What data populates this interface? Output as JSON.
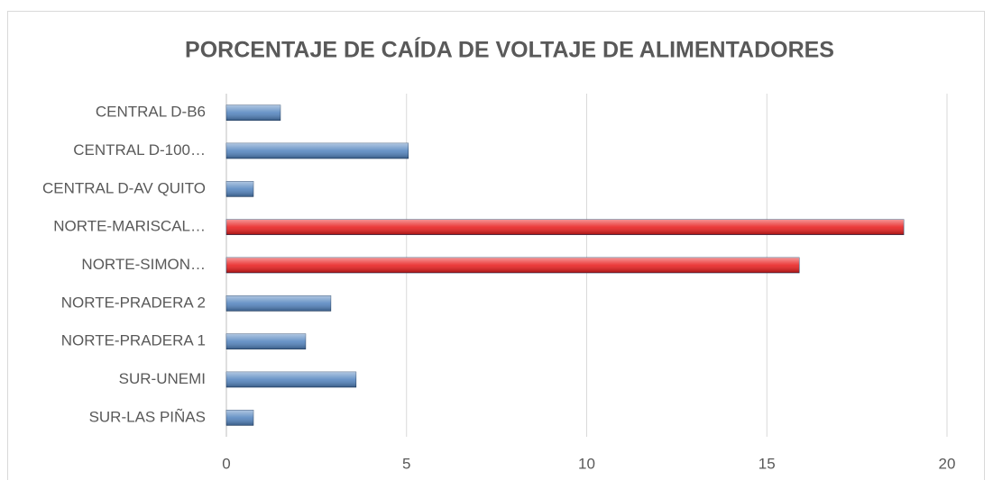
{
  "chart_data": {
    "type": "barh",
    "title": "PORCENTAJE DE CAÍDA DE VOLTAJE DE ALIMENTADORES",
    "categories": [
      "CENTRAL D-B6",
      "CENTRAL D-100…",
      "CENTRAL D-AV QUITO",
      "NORTE-MARISCAL…",
      "NORTE-SIMON…",
      "NORTE-PRADERA 2",
      "NORTE-PRADERA 1",
      "SUR-UNEMI",
      "SUR-LAS PIÑAS"
    ],
    "values": [
      1.5,
      5.05,
      0.75,
      18.8,
      15.9,
      2.9,
      2.2,
      3.6,
      0.75
    ],
    "colors": [
      "#4f81bd",
      "#4f81bd",
      "#4f81bd",
      "#e81818",
      "#e81818",
      "#4f81bd",
      "#4f81bd",
      "#4f81bd",
      "#4f81bd"
    ],
    "xlim": [
      0,
      20
    ],
    "xticks": [
      0,
      5,
      10,
      15,
      20
    ],
    "grid": true
  }
}
